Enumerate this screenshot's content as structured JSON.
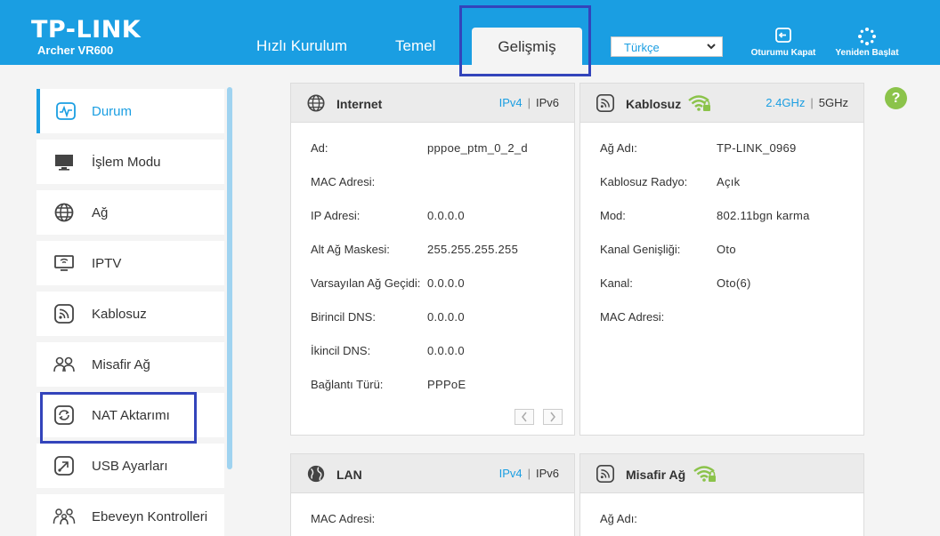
{
  "header": {
    "brand": "TP-LINK",
    "model": "Archer VR600",
    "tabs": [
      {
        "label": "Hızlı Kurulum"
      },
      {
        "label": "Temel"
      },
      {
        "label": "Gelişmiş"
      }
    ],
    "language": "Türkçe",
    "logout_label": "Oturumu Kapat",
    "reboot_label": "Yeniden Başlat",
    "accent_color": "#1a9ee2"
  },
  "sidebar": {
    "items": [
      {
        "label": "Durum",
        "icon": "pulse-monitor-icon"
      },
      {
        "label": "İşlem Modu",
        "icon": "monitor-icon"
      },
      {
        "label": "Ağ",
        "icon": "globe-icon"
      },
      {
        "label": "IPTV",
        "icon": "tv-icon"
      },
      {
        "label": "Kablosuz",
        "icon": "wireless-icon"
      },
      {
        "label": "Misafir Ağ",
        "icon": "guests-icon"
      },
      {
        "label": "NAT Aktarımı",
        "icon": "nat-forward-icon"
      },
      {
        "label": "USB Ayarları",
        "icon": "usb-icon"
      },
      {
        "label": "Ebeveyn Kontrolleri",
        "icon": "parental-icon"
      }
    ]
  },
  "internet": {
    "title": "Internet",
    "ipv4": "IPv4",
    "sep": "|",
    "ipv6": "IPv6",
    "rows": [
      {
        "label": "Ad:",
        "value": "pppoe_ptm_0_2_d"
      },
      {
        "label": "MAC Adresi:",
        "value": ""
      },
      {
        "label": "IP Adresi:",
        "value": "0.0.0.0"
      },
      {
        "label": "Alt Ağ Maskesi:",
        "value": "255.255.255.255"
      },
      {
        "label": "Varsayılan Ağ Geçidi:",
        "value": "0.0.0.0"
      },
      {
        "label": "Birincil DNS:",
        "value": "0.0.0.0"
      },
      {
        "label": "İkincil DNS:",
        "value": "0.0.0.0"
      },
      {
        "label": "Bağlantı Türü:",
        "value": "PPPoE"
      }
    ]
  },
  "wireless": {
    "title": "Kablosuz",
    "band_24": "2.4GHz",
    "sep": "|",
    "band_5": "5GHz",
    "rows": [
      {
        "label": "Ağ Adı:",
        "value": "TP-LINK_0969"
      },
      {
        "label": "Kablosuz Radyo:",
        "value": "Açık"
      },
      {
        "label": "Mod:",
        "value": "802.11bgn karma"
      },
      {
        "label": "Kanal Genişliği:",
        "value": "Oto"
      },
      {
        "label": "Kanal:",
        "value": "Oto(6)"
      },
      {
        "label": "MAC Adresi:",
        "value": ""
      }
    ]
  },
  "lan": {
    "title": "LAN",
    "ipv4": "IPv4",
    "sep": "|",
    "ipv6": "IPv6",
    "rows": [
      {
        "label": "MAC Adresi:",
        "value": ""
      }
    ]
  },
  "guest": {
    "title": "Misafir Ağ",
    "rows": [
      {
        "label": "Ağ Adı:",
        "value": ""
      }
    ]
  },
  "help": {
    "label": "?"
  }
}
